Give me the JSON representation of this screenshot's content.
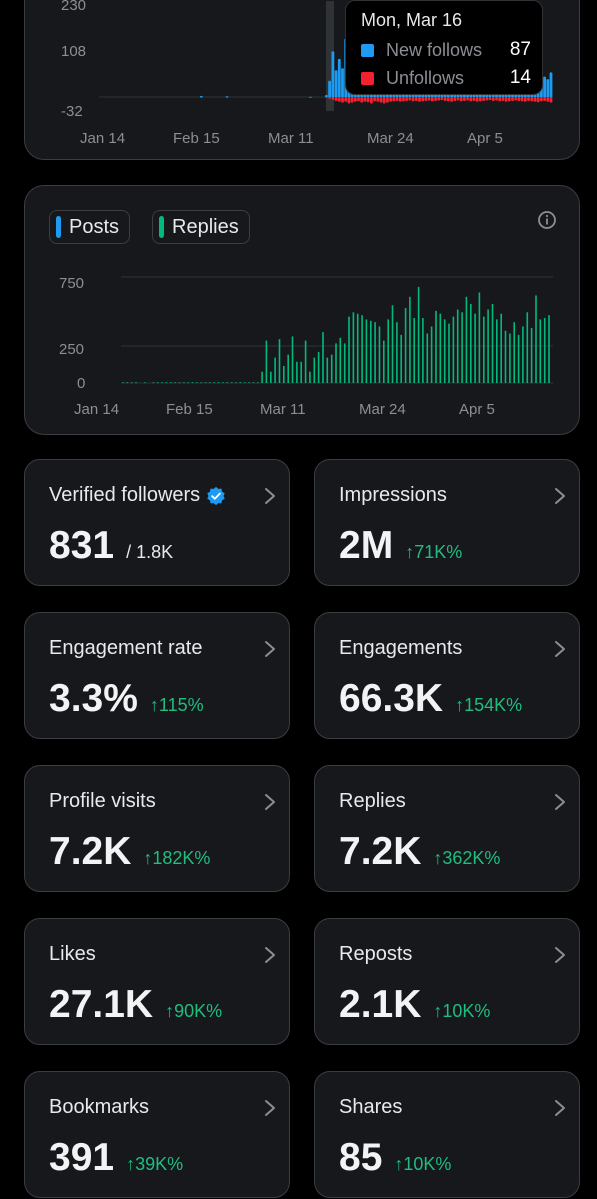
{
  "followers_chart": {
    "y_ticks": [
      "230",
      "108",
      "-32"
    ],
    "x_ticks": [
      "Jan 14",
      "Feb 15",
      "Mar 11",
      "Mar 24",
      "Apr 5"
    ],
    "colors": {
      "new": "#1d9bf0",
      "unfollow": "#f4212e"
    },
    "tooltip": {
      "date": "Mon, Mar 16",
      "new_label": "New follows",
      "new_value": "87",
      "unfollow_label": "Unfollows",
      "unfollow_value": "14"
    },
    "chart_data": {
      "type": "bar",
      "ylim": [
        -32,
        230
      ],
      "series": [
        {
          "name": "New follows",
          "values": [
            0,
            0,
            0,
            0,
            0,
            0,
            0,
            0,
            0,
            0,
            0,
            0,
            0,
            0,
            0,
            0,
            4,
            0,
            0,
            0,
            0,
            0,
            0,
            0,
            3,
            0,
            0,
            0,
            0,
            0,
            0,
            0,
            0,
            0,
            0,
            0,
            0,
            0,
            0,
            0,
            0,
            0,
            0,
            0,
            0,
            0,
            0,
            0,
            0,
            0,
            2,
            0,
            0,
            0,
            0,
            6,
            40,
            110,
            65,
            92,
            70,
            140,
            110,
            98,
            88,
            80,
            82,
            70,
            72,
            71,
            75,
            90,
            78,
            135,
            115,
            85,
            95,
            80,
            110,
            70,
            69,
            88,
            70,
            75,
            65,
            70,
            80,
            72,
            66,
            70,
            68,
            60,
            72,
            65,
            70,
            80,
            72,
            66,
            60,
            70,
            72,
            78,
            70,
            66,
            60,
            70,
            55,
            52,
            50,
            48,
            45,
            44,
            40,
            38,
            35,
            70,
            40,
            54,
            38,
            44,
            40,
            50,
            40,
            50,
            44,
            60
          ]
        },
        {
          "name": "Unfollows",
          "values": [
            0,
            0,
            0,
            0,
            0,
            0,
            0,
            0,
            0,
            0,
            0,
            0,
            0,
            0,
            0,
            0,
            0,
            0,
            0,
            0,
            0,
            0,
            0,
            0,
            0,
            0,
            0,
            0,
            0,
            0,
            0,
            0,
            0,
            0,
            0,
            0,
            0,
            0,
            0,
            0,
            0,
            0,
            0,
            0,
            0,
            0,
            0,
            0,
            0,
            0,
            0,
            0,
            0,
            0,
            0,
            0,
            -2,
            -5,
            -8,
            -10,
            -12,
            -10,
            -14,
            -12,
            -10,
            -9,
            -12,
            -10,
            -11,
            -14,
            -9,
            -10,
            -12,
            -14,
            -12,
            -10,
            -9,
            -8,
            -10,
            -9,
            -8,
            -7,
            -9,
            -8,
            -10,
            -9,
            -8,
            -7,
            -9,
            -8,
            -7,
            -6,
            -8,
            -9,
            -10,
            -8,
            -7,
            -9,
            -8,
            -7,
            -9,
            -8,
            -10,
            -9,
            -8,
            -7,
            -6,
            -8,
            -7,
            -9,
            -8,
            -10,
            -9,
            -8,
            -7,
            -8,
            -9,
            -10,
            -8,
            -9,
            -10,
            -11,
            -9,
            -8,
            -10,
            -12
          ]
        }
      ]
    }
  },
  "posts_chart": {
    "legend": {
      "posts": "Posts",
      "replies": "Replies"
    },
    "colors": {
      "posts": "#1d9bf0",
      "replies": "#00ba7c"
    },
    "y_ticks": [
      "750",
      "250",
      "0"
    ],
    "x_ticks": [
      "Jan 14",
      "Feb 15",
      "Mar 11",
      "Mar 24",
      "Apr 5"
    ],
    "chart_data": {
      "type": "bar",
      "ylim": [
        0,
        750
      ],
      "series": [
        {
          "name": "Replies",
          "values": [
            5,
            5,
            5,
            5,
            0,
            5,
            0,
            5,
            5,
            5,
            5,
            5,
            5,
            5,
            5,
            5,
            5,
            5,
            5,
            5,
            5,
            5,
            5,
            5,
            5,
            5,
            5,
            5,
            5,
            5,
            5,
            5,
            80,
            300,
            80,
            180,
            310,
            120,
            200,
            330,
            150,
            150,
            300,
            80,
            180,
            220,
            360,
            180,
            200,
            280,
            320,
            280,
            470,
            500,
            490,
            480,
            450,
            440,
            430,
            400,
            300,
            450,
            550,
            430,
            340,
            530,
            610,
            460,
            680,
            460,
            350,
            400,
            510,
            490,
            450,
            420,
            470,
            520,
            500,
            610,
            560,
            490,
            640,
            470,
            520,
            560,
            450,
            490,
            370,
            350,
            430,
            340,
            400,
            500,
            390,
            620,
            450,
            460,
            480
          ]
        }
      ]
    }
  },
  "metrics": [
    {
      "title": "Verified followers",
      "value": "831",
      "sub": "/ 1.8K",
      "change": "",
      "verified": true
    },
    {
      "title": "Impressions",
      "value": "2M",
      "sub": "",
      "change": "↑71K%"
    },
    {
      "title": "Engagement rate",
      "value": "3.3%",
      "sub": "",
      "change": "↑115%"
    },
    {
      "title": "Engagements",
      "value": "66.3K",
      "sub": "",
      "change": "↑154K%"
    },
    {
      "title": "Profile visits",
      "value": "7.2K",
      "sub": "",
      "change": "↑182K%"
    },
    {
      "title": "Replies",
      "value": "7.2K",
      "sub": "",
      "change": "↑362K%"
    },
    {
      "title": "Likes",
      "value": "27.1K",
      "sub": "",
      "change": "↑90K%"
    },
    {
      "title": "Reposts",
      "value": "2.1K",
      "sub": "",
      "change": "↑10K%"
    },
    {
      "title": "Bookmarks",
      "value": "391",
      "sub": "",
      "change": "↑39K%"
    },
    {
      "title": "Shares",
      "value": "85",
      "sub": "",
      "change": "↑10K%"
    }
  ]
}
